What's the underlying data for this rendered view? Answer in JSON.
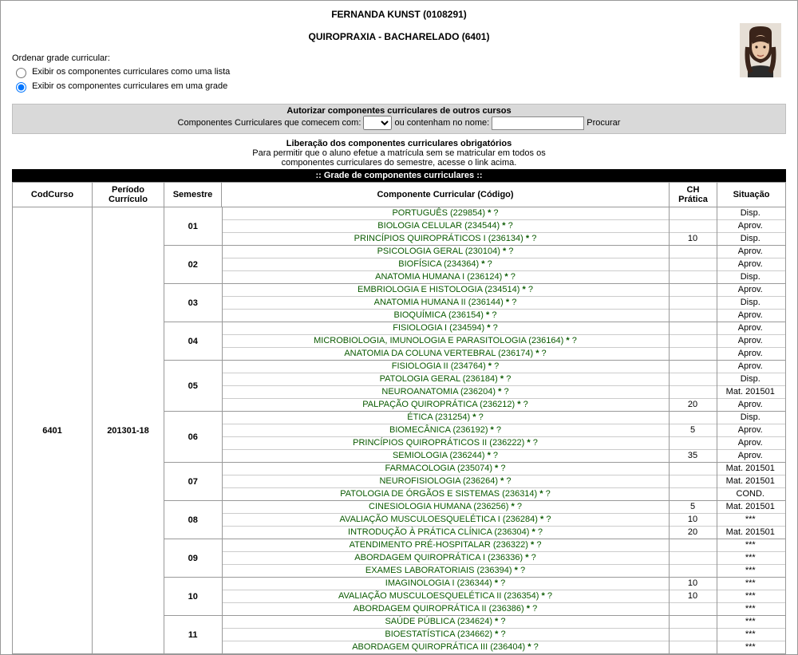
{
  "student_name": "FERNANDA KUNST (0108291)",
  "program_name": "QUIROPRAXIA - BACHARELADO (6401)",
  "order_label": "Ordenar grade curricular:",
  "radio_list": "Exibir os componentes curriculares como uma lista",
  "radio_grid": "Exibir os componentes curriculares em uma grade",
  "authorize_title": "Autorizar componentes curriculares de outros cursos",
  "authorize_text1": "Componentes Curriculares que comecem com:",
  "authorize_text2": "ou contenham no nome:",
  "authorize_btn": "Procurar",
  "liberacao_title": "Liberação dos componentes curriculares obrigatórios",
  "liberacao_text1": "Para permitir que o aluno efetue a matrícula sem se matricular em todos os",
  "liberacao_text2": "componentes curriculares do semestre, acesse o link acima.",
  "grid_title": ":: Grade de componentes curriculares ::",
  "columns": {
    "codcurso": "CodCurso",
    "periodo": "Período Currículo",
    "semestre": "Semestre",
    "componente": "Componente Curricular (Código)",
    "ch": "CH Prática",
    "situacao": "Situação"
  },
  "codcurso": "6401",
  "periodo": "201301-18",
  "semesters": [
    {
      "num": "01",
      "rows": [
        {
          "name": "PORTUGUÊS (229854)",
          "ch": "",
          "sit": "Disp."
        },
        {
          "name": "BIOLOGIA CELULAR (234544)",
          "ch": "",
          "sit": "Aprov."
        },
        {
          "name": "PRINCÍPIOS QUIROPRÁTICOS I (236134)",
          "ch": "10",
          "sit": "Disp."
        }
      ]
    },
    {
      "num": "02",
      "rows": [
        {
          "name": "PSICOLOGIA GERAL (230104)",
          "ch": "",
          "sit": "Aprov."
        },
        {
          "name": "BIOFÍSICA (234364)",
          "ch": "",
          "sit": "Aprov."
        },
        {
          "name": "ANATOMIA HUMANA I (236124)",
          "ch": "",
          "sit": "Disp."
        }
      ]
    },
    {
      "num": "03",
      "rows": [
        {
          "name": "EMBRIOLOGIA E HISTOLOGIA (234514)",
          "ch": "",
          "sit": "Aprov."
        },
        {
          "name": "ANATOMIA HUMANA II (236144)",
          "ch": "",
          "sit": "Disp."
        },
        {
          "name": "BIOQUÍMICA (236154)",
          "ch": "",
          "sit": "Aprov."
        }
      ]
    },
    {
      "num": "04",
      "rows": [
        {
          "name": "FISIOLOGIA I (234594)",
          "ch": "",
          "sit": "Aprov."
        },
        {
          "name": "MICROBIOLOGIA, IMUNOLOGIA E PARASITOLOGIA (236164)",
          "ch": "",
          "sit": "Aprov."
        },
        {
          "name": "ANATOMIA DA COLUNA VERTEBRAL (236174)",
          "ch": "",
          "sit": "Aprov."
        }
      ]
    },
    {
      "num": "05",
      "rows": [
        {
          "name": "FISIOLOGIA II (234764)",
          "ch": "",
          "sit": "Aprov."
        },
        {
          "name": "PATOLOGIA GERAL (236184)",
          "ch": "",
          "sit": "Disp."
        },
        {
          "name": "NEUROANATOMIA (236204)",
          "ch": "",
          "sit": "Mat. 201501"
        },
        {
          "name": "PALPAÇÃO QUIROPRÁTICA (236212)",
          "ch": "20",
          "sit": "Aprov."
        }
      ]
    },
    {
      "num": "06",
      "rows": [
        {
          "name": "ÉTICA (231254)",
          "ch": "",
          "sit": "Disp."
        },
        {
          "name": "BIOMECÂNICA (236192)",
          "ch": "5",
          "sit": "Aprov."
        },
        {
          "name": "PRINCÍPIOS QUIROPRÁTICOS II (236222)",
          "ch": "",
          "sit": "Aprov."
        },
        {
          "name": "SEMIOLOGIA (236244)",
          "ch": "35",
          "sit": "Aprov."
        }
      ]
    },
    {
      "num": "07",
      "rows": [
        {
          "name": "FARMACOLOGIA (235074)",
          "ch": "",
          "sit": "Mat. 201501"
        },
        {
          "name": "NEUROFISIOLOGIA (236264)",
          "ch": "",
          "sit": "Mat. 201501"
        },
        {
          "name": "PATOLOGIA DE ÓRGÃOS E SISTEMAS (236314)",
          "ch": "",
          "sit": "COND."
        }
      ]
    },
    {
      "num": "08",
      "rows": [
        {
          "name": "CINESIOLOGIA HUMANA (236256)",
          "ch": "5",
          "sit": "Mat. 201501"
        },
        {
          "name": "AVALIAÇÃO MUSCULOESQUELÉTICA I (236284)",
          "ch": "10",
          "sit": "***"
        },
        {
          "name": "INTRODUÇÃO À PRÁTICA CLÍNICA (236304)",
          "ch": "20",
          "sit": "Mat. 201501"
        }
      ]
    },
    {
      "num": "09",
      "rows": [
        {
          "name": "ATENDIMENTO PRÉ-HOSPITALAR (236322)",
          "ch": "",
          "sit": "***"
        },
        {
          "name": "ABORDAGEM QUIROPRÁTICA I (236336)",
          "ch": "",
          "sit": "***"
        },
        {
          "name": "EXAMES LABORATORIAIS (236394)",
          "ch": "",
          "sit": "***"
        }
      ]
    },
    {
      "num": "10",
      "rows": [
        {
          "name": "IMAGINOLOGIA I (236344)",
          "ch": "10",
          "sit": "***"
        },
        {
          "name": "AVALIAÇÃO MUSCULOESQUELÉTICA II (236354)",
          "ch": "10",
          "sit": "***"
        },
        {
          "name": "ABORDAGEM QUIROPRÁTICA II (236386)",
          "ch": "",
          "sit": "***"
        }
      ]
    },
    {
      "num": "11",
      "rows": [
        {
          "name": "SAÚDE PÚBLICA (234624)",
          "ch": "",
          "sit": "***"
        },
        {
          "name": "BIOESTATÍSTICA (234662)",
          "ch": "",
          "sit": "***"
        },
        {
          "name": "ABORDAGEM QUIROPRÁTICA III (236404)",
          "ch": "",
          "sit": "***"
        }
      ]
    }
  ]
}
